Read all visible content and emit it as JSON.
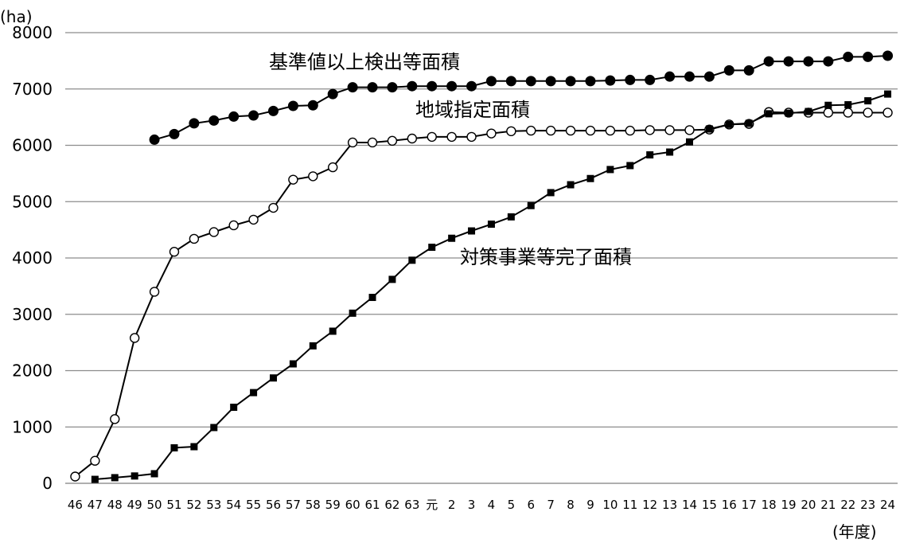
{
  "chart_data": {
    "type": "line",
    "ylabel": "(ha)",
    "xlabel": "(年度)",
    "ylim": [
      0,
      8000
    ],
    "yticks": [
      0,
      1000,
      2000,
      3000,
      4000,
      5000,
      6000,
      7000,
      8000
    ],
    "categories": [
      "46",
      "47",
      "48",
      "49",
      "50",
      "51",
      "52",
      "53",
      "54",
      "55",
      "56",
      "57",
      "58",
      "59",
      "60",
      "61",
      "62",
      "63",
      "元",
      "2",
      "3",
      "4",
      "5",
      "6",
      "7",
      "8",
      "9",
      "10",
      "11",
      "12",
      "13",
      "14",
      "15",
      "16",
      "17",
      "18",
      "19",
      "20",
      "21",
      "22",
      "23",
      "24"
    ],
    "grid": "horizontal",
    "series": [
      {
        "name": "基準値以上検出等面積",
        "marker": "filled-circle",
        "color": "#000000",
        "values": [
          null,
          null,
          null,
          null,
          6100,
          6200,
          6390,
          6440,
          6510,
          6530,
          6610,
          6700,
          6710,
          6910,
          7030,
          7030,
          7030,
          7050,
          7050,
          7050,
          7050,
          7140,
          7140,
          7140,
          7140,
          7140,
          7140,
          7150,
          7160,
          7160,
          7220,
          7220,
          7220,
          7330,
          7330,
          7490,
          7490,
          7490,
          7490,
          7570,
          7570,
          7590
        ]
      },
      {
        "name": "地域指定面積",
        "marker": "open-circle",
        "color": "#000000",
        "values": [
          120,
          400,
          1140,
          2580,
          3400,
          4110,
          4340,
          4460,
          4580,
          4680,
          4890,
          5390,
          5450,
          5610,
          6050,
          6050,
          6080,
          6120,
          6150,
          6150,
          6150,
          6210,
          6250,
          6260,
          6260,
          6260,
          6260,
          6260,
          6260,
          6270,
          6270,
          6270,
          6280,
          6370,
          6380,
          6590,
          6580,
          6580,
          6580,
          6580,
          6580,
          6580
        ]
      },
      {
        "name": "対策事業等完了面積",
        "marker": "filled-square",
        "color": "#000000",
        "values": [
          null,
          70,
          100,
          130,
          170,
          630,
          650,
          990,
          1350,
          1610,
          1870,
          2120,
          2440,
          2700,
          3020,
          3300,
          3620,
          3960,
          4190,
          4350,
          4480,
          4600,
          4730,
          4930,
          5160,
          5300,
          5410,
          5570,
          5640,
          5830,
          5880,
          6060,
          6290,
          6370,
          6390,
          6560,
          6570,
          6600,
          6710,
          6720,
          6790,
          6910
        ]
      }
    ]
  }
}
